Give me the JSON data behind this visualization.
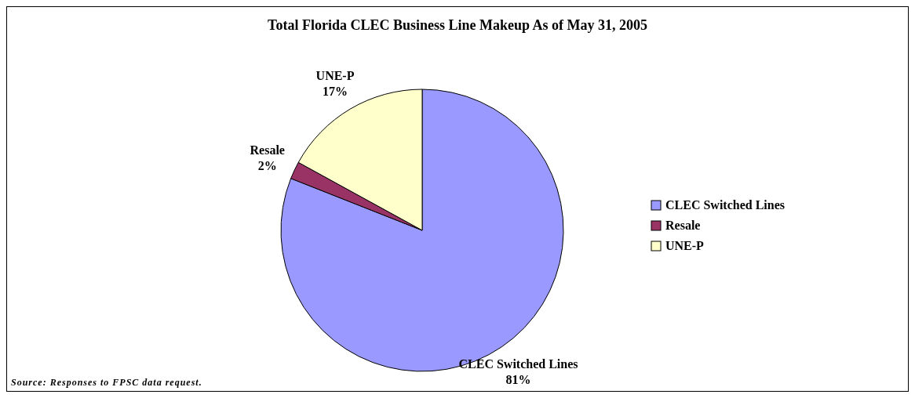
{
  "chart_data": {
    "type": "pie",
    "title": "Total Florida CLEC Business Line Makeup As of May 31, 2005",
    "categories": [
      "CLEC Switched Lines",
      "Resale",
      "UNE-P"
    ],
    "values": [
      81,
      2,
      17
    ],
    "colors": [
      "#9999ff",
      "#993366",
      "#ffffcc"
    ],
    "value_labels": [
      "81%",
      "2%",
      "17%"
    ],
    "legend": "right",
    "annotations": [
      "Source: Responses to FPSC data request."
    ]
  }
}
